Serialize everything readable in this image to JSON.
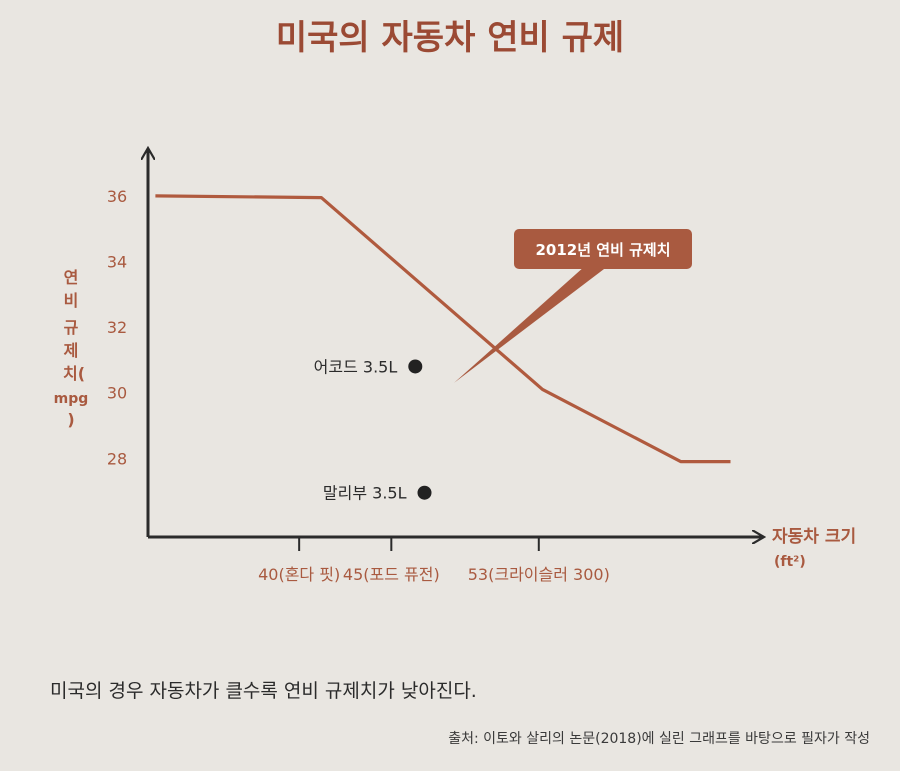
{
  "title": "미국의 자동차 연비 규제",
  "caption": "미국의 경우 자동차가 클수록 연비 규제치가 낮아진다.",
  "source": "출처: 이토와 살리의 논문(2018)에 실린 그래프를 바탕으로 필자가 작성",
  "colors": {
    "accent": "#b05a3e",
    "title": "#9b4a34",
    "axis": "#2b2b2b",
    "point": "#222222",
    "callout": "#a95a40"
  },
  "chart_data": {
    "type": "line",
    "title": "미국의 자동차 연비 규제",
    "ylabel": "연비 규제치(mpg)",
    "ylabel_lines": [
      "연",
      "비",
      "규",
      "제",
      "치(",
      "mpg",
      ")"
    ],
    "xlabel": "자동차 크기",
    "xlabel_unit": "(ft²)",
    "yticks": [
      36,
      34,
      32,
      30,
      28
    ],
    "ylim": [
      25.6,
      37.4
    ],
    "xlim": [
      31.8,
      65
    ],
    "xticks": [
      {
        "value": 40,
        "label": "40(혼다 핏)"
      },
      {
        "value": 45,
        "label": "45(포드 퓨전)"
      },
      {
        "value": 53,
        "label": "53(크라이슬러 300)"
      }
    ],
    "series": [
      {
        "name": "2012년 연비 규제치",
        "x": [
          32.2,
          41.2,
          53.2,
          60.7,
          63.4
        ],
        "y": [
          36.0,
          35.95,
          30.1,
          27.9,
          27.9
        ]
      }
    ],
    "points": [
      {
        "label": "어코드 3.5L",
        "x": 46.3,
        "y": 30.8
      },
      {
        "label": "말리부 3.5L",
        "x": 46.8,
        "y": 26.95
      }
    ],
    "annotations": [
      {
        "text": "2012년 연비 규제치",
        "x": 48.4,
        "y": 30.3
      }
    ],
    "grid": false
  }
}
